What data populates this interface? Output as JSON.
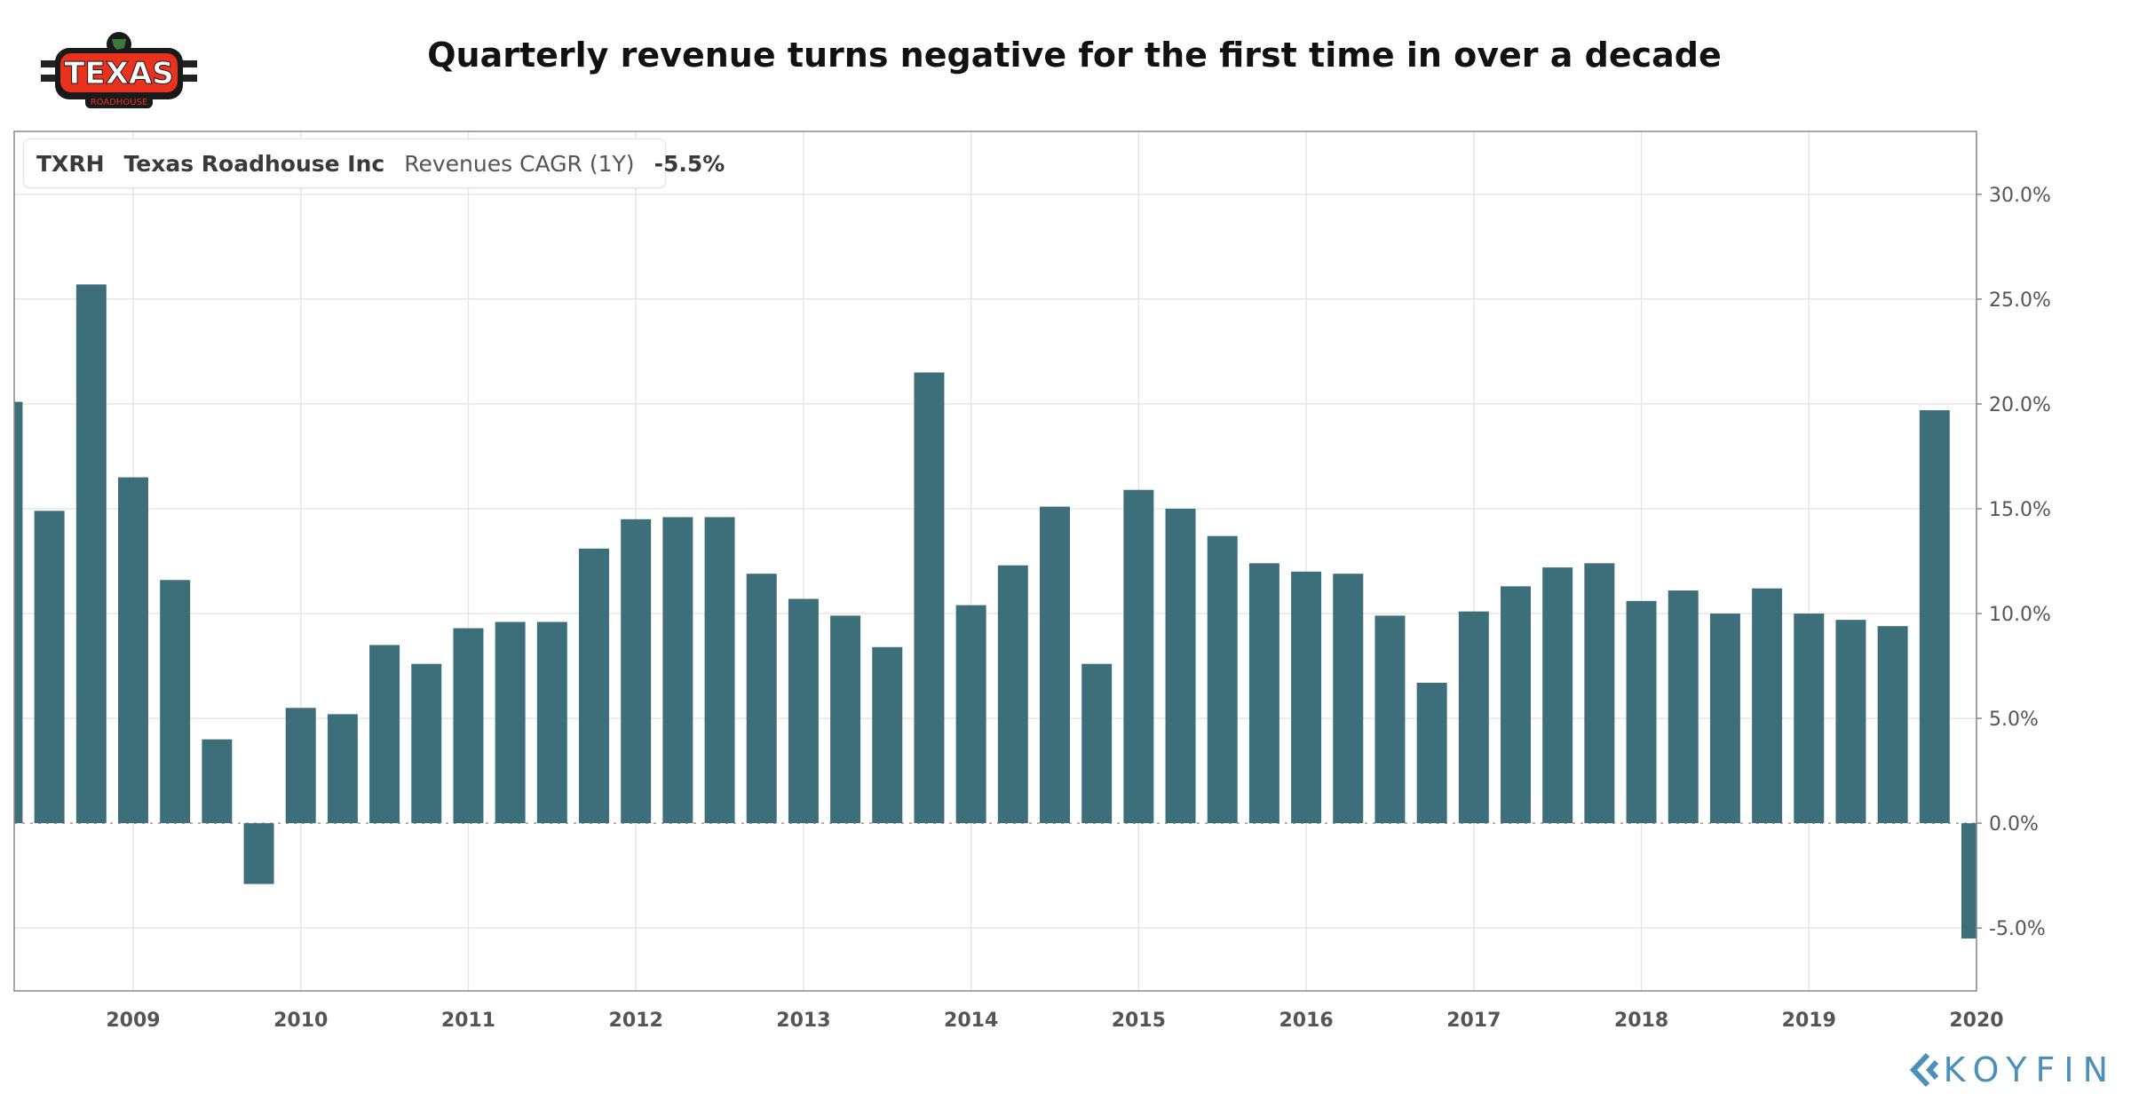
{
  "logo": {
    "brand": "TEXAS",
    "sub": "ROADHOUSE"
  },
  "title": "Quarterly revenue turns negative for the first time in over a decade",
  "legend": {
    "ticker": "TXRH",
    "company": "Texas Roadhouse Inc",
    "metric": "Revenues CAGR (1Y)",
    "value": "-5.5%"
  },
  "watermark": "KOYFIN",
  "colors": {
    "bar": "#3d6f7b",
    "accent": "#3d6f7b",
    "watermark": "#4a90b8",
    "logo_red": "#e8321e"
  },
  "chart_data": {
    "type": "bar",
    "title": "Quarterly revenue turns negative for the first time in over a decade",
    "xlabel": "",
    "ylabel": "",
    "ylim": [
      -8.0,
      33.0
    ],
    "y_ticks": [
      30,
      25,
      20,
      15,
      10,
      5,
      0,
      -5
    ],
    "y_tick_labels": [
      "30.0%",
      "25.0%",
      "20.0%",
      "15.0%",
      "10.0%",
      "5.0%",
      "0.0%",
      "-5.0%"
    ],
    "x_tick_labels": [
      "2009",
      "2010",
      "2011",
      "2012",
      "2013",
      "2014",
      "2015",
      "2016",
      "2017",
      "2018",
      "2019",
      "2020"
    ],
    "x_start": 2008.29,
    "x_end": 2020.0,
    "bar_width_years": 0.18,
    "series": [
      {
        "name": "Revenues CAGR (1Y)",
        "x": [
          2008.25,
          2008.5,
          2008.75,
          2009.0,
          2009.25,
          2009.5,
          2009.75,
          2010.0,
          2010.25,
          2010.5,
          2010.75,
          2011.0,
          2011.25,
          2011.5,
          2011.75,
          2012.0,
          2012.25,
          2012.5,
          2012.75,
          2013.0,
          2013.25,
          2013.5,
          2013.75,
          2014.0,
          2014.25,
          2014.5,
          2014.75,
          2015.0,
          2015.25,
          2015.5,
          2015.75,
          2016.0,
          2016.25,
          2016.5,
          2016.75,
          2017.0,
          2017.25,
          2017.5,
          2017.75,
          2018.0,
          2018.25,
          2018.5,
          2018.75,
          2019.0,
          2019.25,
          2019.5,
          2019.75,
          2020.0
        ],
        "values": [
          20.1,
          14.9,
          25.7,
          16.5,
          11.6,
          4.0,
          -2.9,
          5.5,
          5.2,
          8.5,
          7.6,
          9.3,
          9.6,
          9.6,
          13.1,
          14.5,
          14.6,
          14.6,
          11.9,
          10.7,
          9.9,
          8.4,
          21.5,
          10.4,
          12.3,
          15.1,
          7.6,
          15.9,
          15.0,
          13.7,
          12.4,
          12.0,
          11.9,
          9.9,
          6.7,
          10.1,
          11.3,
          12.2,
          12.4,
          10.6,
          11.1,
          10.0,
          11.2,
          10.0,
          9.7,
          9.4,
          19.7,
          -5.5
        ]
      }
    ]
  }
}
